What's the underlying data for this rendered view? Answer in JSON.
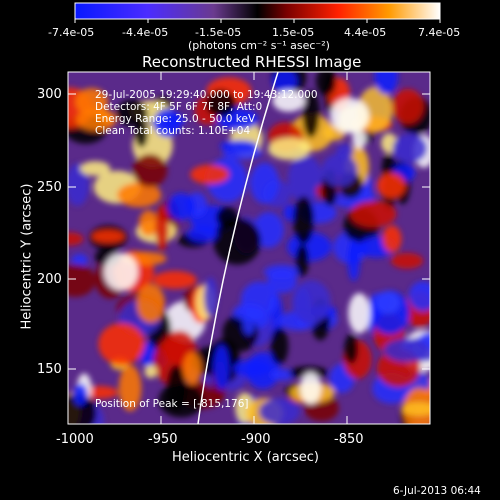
{
  "colorbar": {
    "ticks": [
      "-7.4e-05",
      "-4.4e-05",
      "-1.5e-05",
      "1.5e-05",
      "4.4e-05",
      "7.4e-05"
    ],
    "unit": "(photons cm⁻² s⁻¹ asec⁻²)"
  },
  "title": "Reconstructed RHESSI Image",
  "annotations": {
    "time": "29-Jul-2005 19:29:40.000 to 19:43:12.000",
    "detectors": "Detectors: 4F 5F 6F 7F 8F, Att:0",
    "energy": "Energy Range: 25.0 - 50.0 keV",
    "clean": "Clean     Total counts: 1.10E+04",
    "peak": "Position of Peak = [-815,176]"
  },
  "axes": {
    "xlabel": "Heliocentric X (arcsec)",
    "ylabel": "Heliocentric Y (arcsec)",
    "xlim": [
      -1000,
      -805
    ],
    "ylim": [
      115,
      310
    ],
    "xticks": [
      "-1000",
      "-950",
      "-900",
      "-850"
    ],
    "yticks": [
      "300",
      "250",
      "200",
      "150"
    ]
  },
  "footer": {
    "date": "6-Jul-2013 06:44"
  },
  "colors": {
    "background": "#000000",
    "foreground": "#ffffff",
    "low": "#0000ff",
    "mid": "#000000",
    "high": "#ffffff"
  }
}
